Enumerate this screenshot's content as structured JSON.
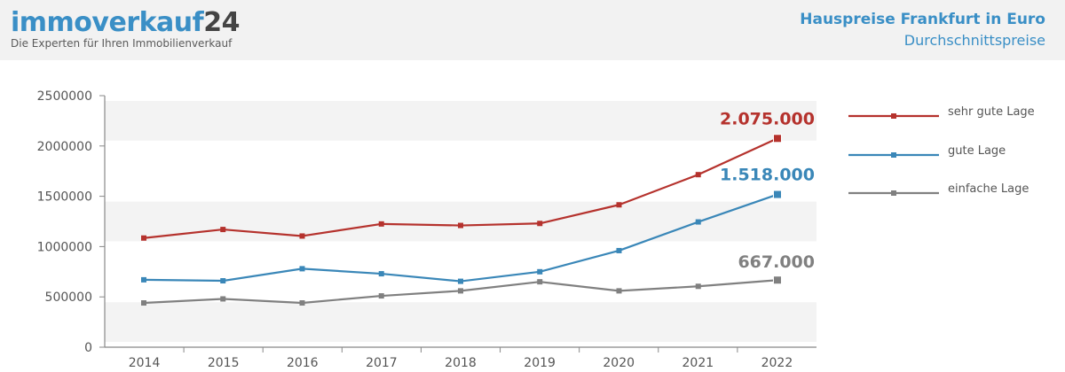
{
  "brand": {
    "name_main": "immoverkauf",
    "name_num": "24",
    "tagline": "Die Experten für Ihren Immobilienverkauf"
  },
  "header": {
    "title": "Hauspreise Frankfurt in Euro",
    "subtitle": "Durchschnittspreise"
  },
  "chart_data": {
    "type": "line",
    "title": "Hauspreise Frankfurt in Euro",
    "subtitle": "Durchschnittspreise",
    "x": [
      "2014",
      "2015",
      "2016",
      "2017",
      "2018",
      "2019",
      "2020",
      "2021",
      "2022"
    ],
    "yticks": [
      "0",
      "500000",
      "1000000",
      "1500000",
      "2000000",
      "2500000"
    ],
    "ylim": [
      0,
      2500000
    ],
    "grid": "alternating horizontal bands",
    "legend_position": "right",
    "series": [
      {
        "name": "sehr gute Lage",
        "color": "#b5322d",
        "values": [
          1085000,
          1170000,
          1105000,
          1225000,
          1210000,
          1230000,
          1415000,
          1715000,
          2075000
        ],
        "end_label": "2.075.000"
      },
      {
        "name": "gute Lage",
        "color": "#3a87b8",
        "values": [
          670000,
          660000,
          780000,
          730000,
          655000,
          750000,
          960000,
          1245000,
          1518000
        ],
        "end_label": "1.518.000"
      },
      {
        "name": "einfache Lage",
        "color": "#808080",
        "values": [
          440000,
          480000,
          440000,
          510000,
          560000,
          650000,
          560000,
          605000,
          667000
        ],
        "end_label": "667.000"
      }
    ]
  }
}
